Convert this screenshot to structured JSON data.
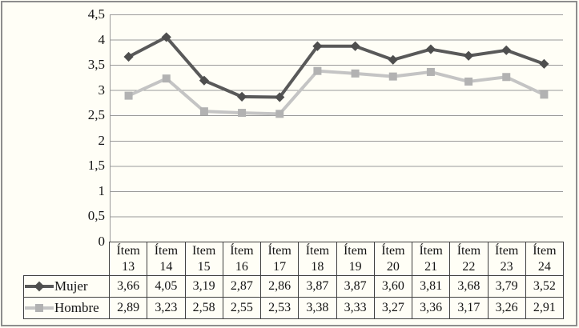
{
  "figure": {
    "background": "#fffef6",
    "frame_border_color": "#8d8d8d",
    "grid_color": "#9a9a9a",
    "axis_color": "#9a9a9a",
    "table_border_color": "#404040",
    "text_color": "#141414"
  },
  "chart_data": {
    "type": "line",
    "title": "",
    "xlabel": "",
    "ylabel": "",
    "grid": true,
    "legend_position": "table-rows-left",
    "ylim": [
      0,
      4.5
    ],
    "y_ticks": [
      "0",
      "0,5",
      "1",
      "1,5",
      "2",
      "2,5",
      "3",
      "3,5",
      "4",
      "4,5"
    ],
    "y_tick_values": [
      0,
      0.5,
      1,
      1.5,
      2,
      2.5,
      3,
      3.5,
      4,
      4.5
    ],
    "categories": [
      "Ítem 13",
      "Ítem 14",
      "Item 15",
      "Ítem 16",
      "Ítem 17",
      "Ítem 18",
      "Ítem 19",
      "Ítem 20",
      "Ítem 21",
      "Ítem 22",
      "Ítem 23",
      "Ítem 24"
    ],
    "series": [
      {
        "name": "Mujer",
        "marker": "diamond",
        "color": "#595959",
        "marker_color": "#4e4e4e",
        "values": [
          3.66,
          4.05,
          3.19,
          2.87,
          2.86,
          3.87,
          3.87,
          3.6,
          3.81,
          3.68,
          3.79,
          3.52
        ],
        "labels": [
          "3,66",
          "4,05",
          "3,19",
          "2,87",
          "2,86",
          "3,87",
          "3,87",
          "3,60",
          "3,81",
          "3,68",
          "3,79",
          "3,52"
        ]
      },
      {
        "name": "Hombre",
        "marker": "square",
        "color": "#c4c4c4",
        "marker_color": "#b2b2b2",
        "values": [
          2.89,
          3.23,
          2.58,
          2.55,
          2.53,
          3.38,
          3.33,
          3.27,
          3.36,
          3.17,
          3.26,
          2.91
        ],
        "labels": [
          "2,89",
          "3,23",
          "2,58",
          "2,55",
          "2,53",
          "3,38",
          "3,33",
          "3,27",
          "3,36",
          "3,17",
          "3,26",
          "2,91"
        ]
      }
    ]
  }
}
